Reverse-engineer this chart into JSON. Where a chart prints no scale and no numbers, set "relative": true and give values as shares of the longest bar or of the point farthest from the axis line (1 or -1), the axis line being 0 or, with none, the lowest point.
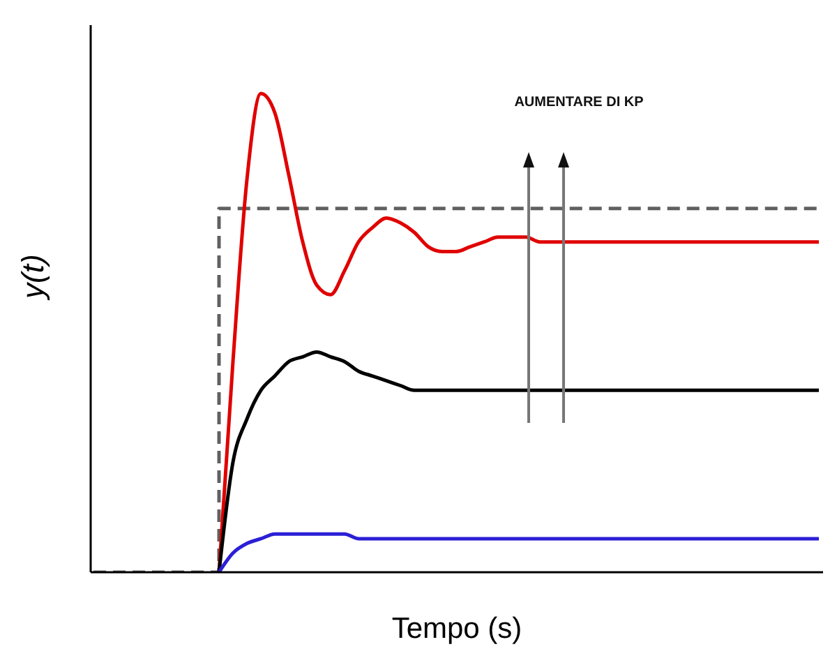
{
  "chart_data": {
    "type": "line",
    "xlabel": "Tempo (s)",
    "ylabel": "y(t)",
    "relative": true,
    "legend": false,
    "grid": false,
    "marker": "none",
    "annotations": [
      "AUMENTARE DI KP"
    ],
    "categories": [
      null,
      null,
      null,
      null,
      null,
      null,
      null,
      null,
      null,
      null,
      null,
      null,
      null,
      null,
      null,
      null,
      null,
      null,
      null,
      null,
      null,
      null,
      null,
      null,
      null,
      null,
      null,
      null,
      null,
      null,
      null,
      null,
      null,
      null,
      null,
      null,
      null,
      null,
      null,
      null,
      null,
      null,
      null,
      null,
      null,
      null,
      null,
      null,
      null,
      null,
      null,
      null,
      null
    ],
    "series": [
      {
        "type": "step",
        "color": "#606060",
        "line_style": "dashed",
        "values": [
          0,
          0,
          0,
          0,
          0,
          0,
          0,
          0,
          0,
          0.76,
          0.76,
          0.76,
          0.76,
          0.76,
          0.76,
          0.76,
          0.76,
          0.76,
          0.76,
          0.76,
          0.76,
          0.76,
          0.76,
          0.76,
          0.76,
          0.76,
          0.76,
          0.76,
          0.76,
          0.76,
          0.76,
          0.76,
          0.76,
          0.76,
          0.76,
          0.76,
          0.76,
          0.76,
          0.76,
          0.76,
          0.76,
          0.76,
          0.76,
          0.76,
          0.76,
          0.76,
          0.76,
          0.76,
          0.76,
          0.76,
          0.76,
          0.76,
          0.76
        ]
      },
      {
        "color": "#e00000",
        "line_style": "solid",
        "values": [
          null,
          null,
          null,
          null,
          null,
          null,
          null,
          null,
          null,
          0,
          0.44,
          0.82,
          1,
          0.96,
          0.83,
          0.69,
          0.6,
          0.58,
          0.63,
          0.69,
          0.72,
          0.74,
          0.73,
          0.71,
          0.68,
          0.67,
          0.67,
          0.68,
          0.69,
          0.7,
          0.7,
          0.7,
          0.69,
          0.69,
          0.69,
          0.69,
          0.69,
          0.69,
          0.69,
          0.69,
          0.69,
          0.69,
          0.69,
          0.69,
          0.69,
          0.69,
          0.69,
          0.69,
          0.69,
          0.69,
          0.69,
          0.69,
          0.69
        ]
      },
      {
        "color": "#000000",
        "line_style": "solid",
        "values": [
          null,
          null,
          null,
          null,
          null,
          null,
          null,
          null,
          null,
          0,
          0.23,
          0.32,
          0.38,
          0.41,
          0.44,
          0.45,
          0.46,
          0.45,
          0.44,
          0.42,
          0.41,
          0.4,
          0.39,
          0.38,
          0.38,
          0.38,
          0.38,
          0.38,
          0.38,
          0.38,
          0.38,
          0.38,
          0.38,
          0.38,
          0.38,
          0.38,
          0.38,
          0.38,
          0.38,
          0.38,
          0.38,
          0.38,
          0.38,
          0.38,
          0.38,
          0.38,
          0.38,
          0.38,
          0.38,
          0.38,
          0.38,
          0.38,
          0.38
        ]
      },
      {
        "color": "#2b1fd6",
        "line_style": "solid",
        "values": [
          null,
          null,
          null,
          null,
          null,
          null,
          null,
          null,
          null,
          0,
          0.04,
          0.06,
          0.07,
          0.08,
          0.08,
          0.08,
          0.08,
          0.08,
          0.08,
          0.07,
          0.07,
          0.07,
          0.07,
          0.07,
          0.07,
          0.07,
          0.07,
          0.07,
          0.07,
          0.07,
          0.07,
          0.07,
          0.07,
          0.07,
          0.07,
          0.07,
          0.07,
          0.07,
          0.07,
          0.07,
          0.07,
          0.07,
          0.07,
          0.07,
          0.07,
          0.07,
          0.07,
          0.07,
          0.07,
          0.07,
          0.07,
          0.07,
          0.07
        ]
      }
    ]
  }
}
